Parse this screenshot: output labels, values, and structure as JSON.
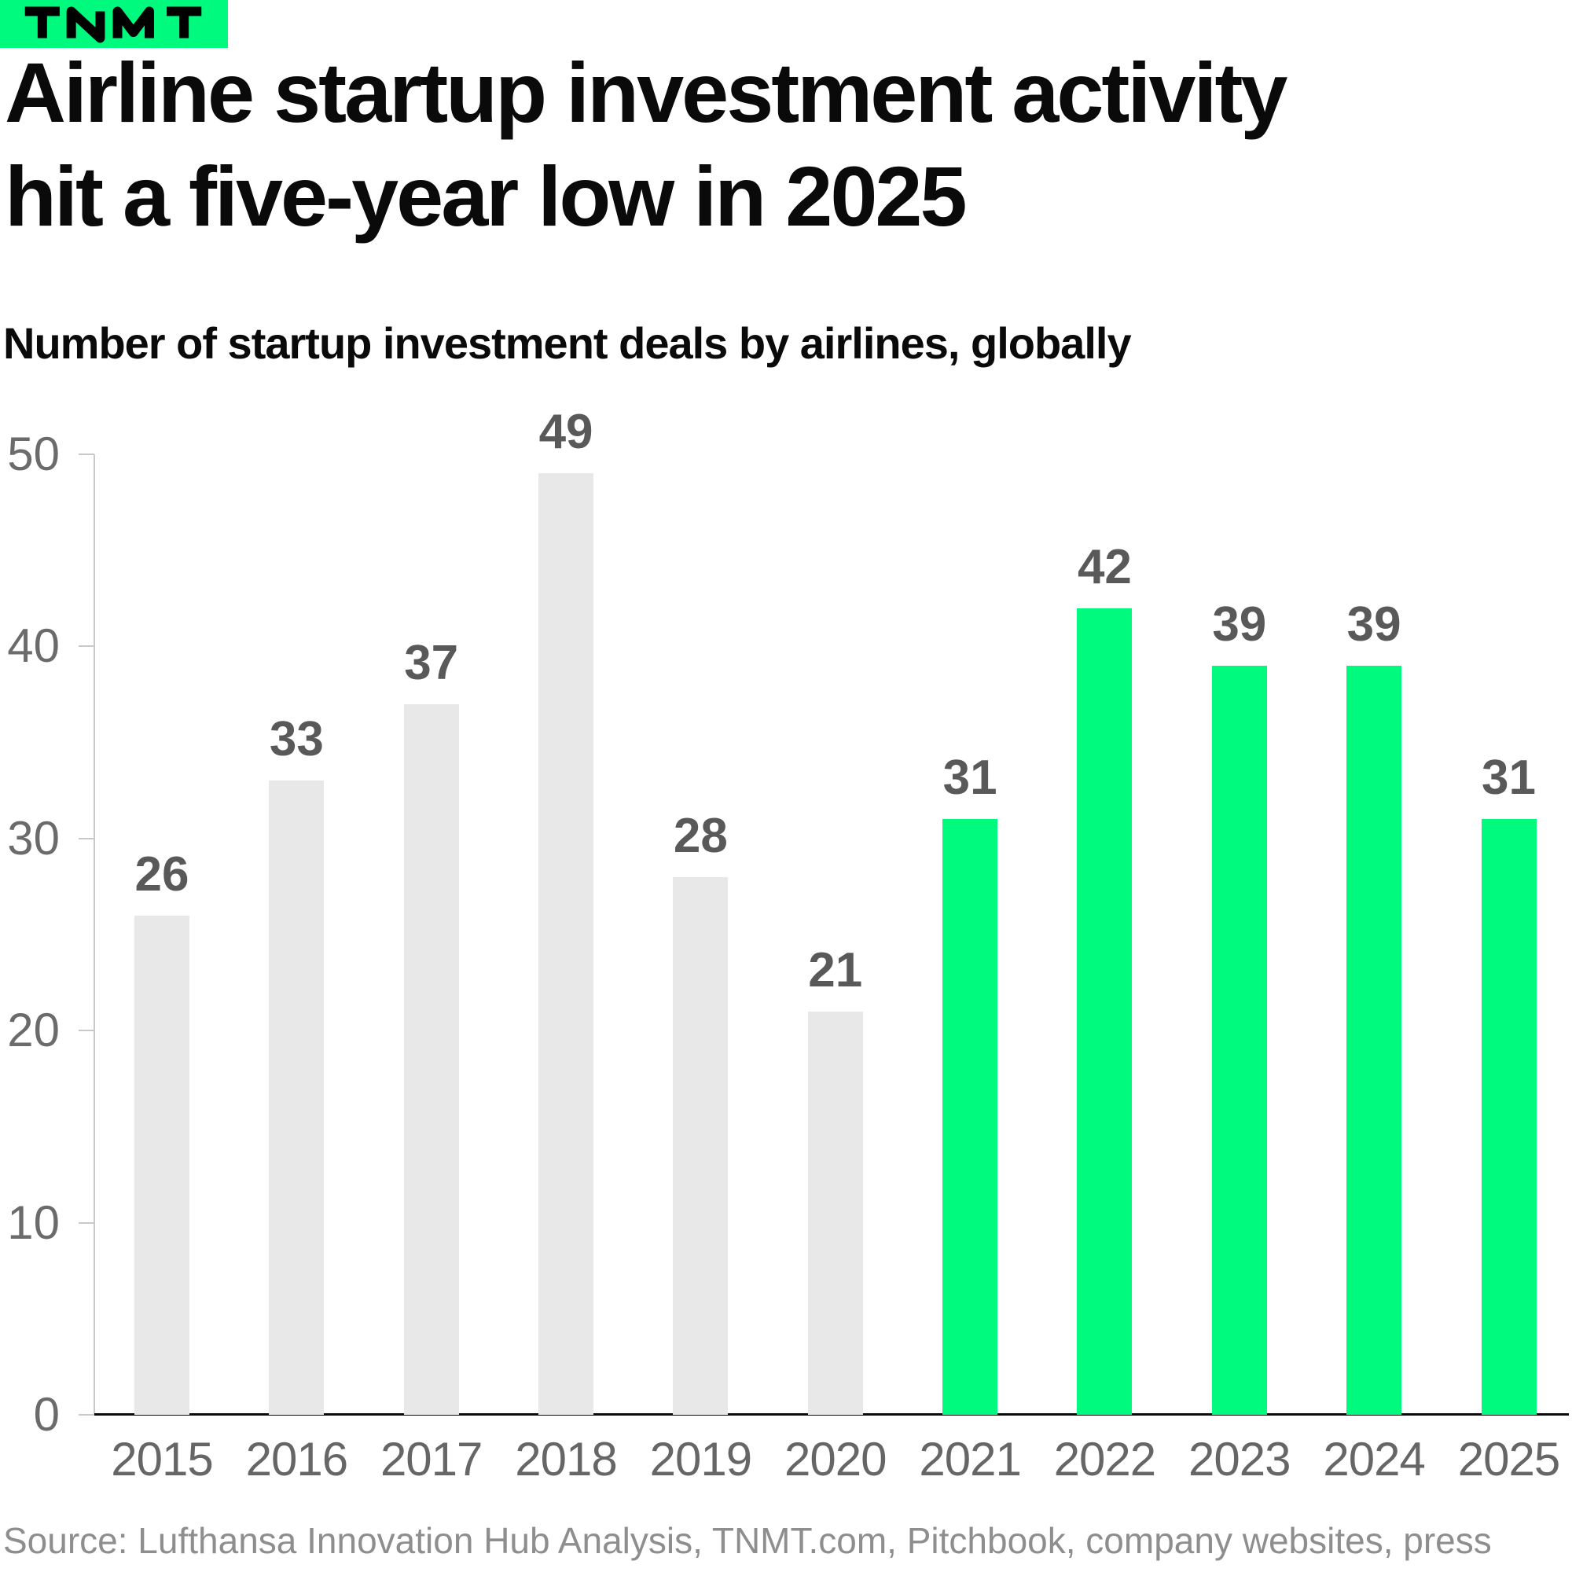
{
  "header": {
    "logo_text": "TNMT",
    "title": "Airline startup investment activity hit a five-year low in 2025",
    "title_lines": [
      "Airline startup investment activity",
      "hit a five-year low in 2025"
    ],
    "subtitle": "Number of startup investment deals by airlines, globally"
  },
  "chart_data": {
    "type": "bar",
    "title": "Airline startup investment activity hit a five-year low in 2025",
    "subtitle": "Number of startup investment deals by airlines, globally",
    "categories": [
      "2015",
      "2016",
      "2017",
      "2018",
      "2019",
      "2020",
      "2021",
      "2022",
      "2023",
      "2024",
      "2025"
    ],
    "values": [
      26,
      33,
      37,
      49,
      28,
      21,
      31,
      42,
      39,
      39,
      31
    ],
    "highlight": [
      false,
      false,
      false,
      false,
      false,
      false,
      true,
      true,
      true,
      true,
      true
    ],
    "value_labels_shown": true,
    "xlabel": "",
    "ylabel": "",
    "ylim": [
      0,
      50
    ],
    "yticks": [
      0,
      10,
      20,
      30,
      40,
      50
    ],
    "grid": false,
    "legend": "none",
    "colors": {
      "default_bar": "#E8E8E8",
      "highlight_bar": "#00FA7E"
    }
  },
  "footer": {
    "source": "Source: Lufthansa Innovation Hub Analysis, TNMT.com, Pitchbook, company websites, press"
  },
  "colors": {
    "accent_green": "#00FA7E",
    "bar_gray": "#E8E8E8",
    "title": "#0A0A0A",
    "value_label": "#595959",
    "axis_label": "#6B6B6B",
    "x_label": "#666666",
    "axis_line": "#C9C9C9",
    "baseline": "#0A0A0A",
    "source": "#8E8E8E",
    "background": "#FFFFFF",
    "logo_text": "#000000"
  }
}
